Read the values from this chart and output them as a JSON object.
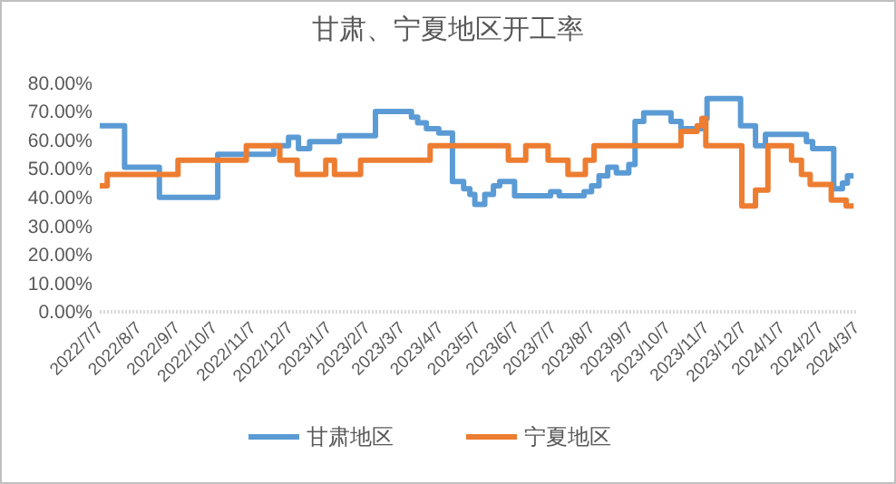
{
  "chart_data": {
    "type": "step",
    "title": "甘肃、宁夏地区开工率",
    "xlim": [
      "2022-07-07",
      "2024-03-07"
    ],
    "xticks": [
      {
        "value": "2022-07-07",
        "label": "2022/7/7"
      },
      {
        "value": "2022-08-07",
        "label": "2022/8/7"
      },
      {
        "value": "2022-09-07",
        "label": "2022/9/7"
      },
      {
        "value": "2022-10-07",
        "label": "2022/10/7"
      },
      {
        "value": "2022-11-07",
        "label": "2022/11/7"
      },
      {
        "value": "2022-12-07",
        "label": "2022/12/7"
      },
      {
        "value": "2023-01-07",
        "label": "2023/1/7"
      },
      {
        "value": "2023-02-07",
        "label": "2023/2/7"
      },
      {
        "value": "2023-03-07",
        "label": "2023/3/7"
      },
      {
        "value": "2023-04-07",
        "label": "2023/4/7"
      },
      {
        "value": "2023-05-07",
        "label": "2023/5/7"
      },
      {
        "value": "2023-06-07",
        "label": "2023/6/7"
      },
      {
        "value": "2023-07-07",
        "label": "2023/7/7"
      },
      {
        "value": "2023-08-07",
        "label": "2023/8/7"
      },
      {
        "value": "2023-09-07",
        "label": "2023/9/7"
      },
      {
        "value": "2023-10-07",
        "label": "2023/10/7"
      },
      {
        "value": "2023-11-07",
        "label": "2023/11/7"
      },
      {
        "value": "2023-12-07",
        "label": "2023/12/7"
      },
      {
        "value": "2024-01-07",
        "label": "2024/1/7"
      },
      {
        "value": "2024-02-07",
        "label": "2024/2/7"
      },
      {
        "value": "2024-03-07",
        "label": "2024/3/7"
      }
    ],
    "ylim": [
      0,
      80
    ],
    "yticks": [
      {
        "value": 0,
        "label": "0.00%"
      },
      {
        "value": 10,
        "label": "10.00%"
      },
      {
        "value": 20,
        "label": "20.00%"
      },
      {
        "value": 30,
        "label": "30.00%"
      },
      {
        "value": 40,
        "label": "40.00%"
      },
      {
        "value": 50,
        "label": "50.00%"
      },
      {
        "value": 60,
        "label": "60.00%"
      },
      {
        "value": 70,
        "label": "70.00%"
      },
      {
        "value": 80,
        "label": "80.00%"
      }
    ],
    "grid": false,
    "legend": "bottom",
    "line_style": "solid",
    "marker": "none",
    "series": [
      {
        "name": "甘肃地区",
        "color": "#5b9bd5",
        "x": [
          "2022-07-07",
          "2022-07-27",
          "2022-08-24",
          "2022-10-10",
          "2022-11-24",
          "2022-12-06",
          "2022-12-14",
          "2022-12-23",
          "2023-01-16",
          "2023-02-14",
          "2023-03-15",
          "2023-03-20",
          "2023-03-27",
          "2023-04-06",
          "2023-04-17",
          "2023-04-26",
          "2023-05-01",
          "2023-05-05",
          "2023-05-13",
          "2023-05-20",
          "2023-05-25",
          "2023-06-06",
          "2023-07-05",
          "2023-07-12",
          "2023-08-01",
          "2023-08-07",
          "2023-08-13",
          "2023-08-20",
          "2023-08-27",
          "2023-09-06",
          "2023-09-11",
          "2023-09-18",
          "2023-10-10",
          "2023-10-18",
          "2023-11-04",
          "2023-11-08",
          "2023-12-05",
          "2023-12-17",
          "2023-12-25",
          "2024-01-27",
          "2024-02-01",
          "2024-02-18",
          "2024-02-25",
          "2024-02-29",
          "2024-03-05"
        ],
        "values": [
          65,
          50.5,
          40,
          55,
          58,
          61,
          57,
          59.5,
          61.5,
          70,
          68,
          66,
          64,
          62.5,
          45.5,
          43,
          41,
          37.5,
          41,
          44,
          45.5,
          40.5,
          42,
          40.5,
          42,
          44,
          47.5,
          50.5,
          48.5,
          51.5,
          66.5,
          69.5,
          66.5,
          64,
          67.5,
          74.5,
          65,
          58,
          62,
          59.5,
          57,
          43,
          45,
          47.5,
          47.5
        ]
      },
      {
        "name": "宁夏地区",
        "color": "#ed7d31",
        "x": [
          "2022-07-07",
          "2022-07-13",
          "2022-09-08",
          "2022-11-02",
          "2022-11-29",
          "2022-12-13",
          "2023-01-05",
          "2023-01-12",
          "2023-02-02",
          "2023-03-30",
          "2023-06-01",
          "2023-06-15",
          "2023-07-03",
          "2023-07-19",
          "2023-08-02",
          "2023-08-09",
          "2023-10-18",
          "2023-10-31",
          "2023-11-04",
          "2023-11-07",
          "2023-12-06",
          "2023-12-17",
          "2023-12-27",
          "2024-01-15",
          "2024-01-23",
          "2024-01-30",
          "2024-02-16",
          "2024-02-28",
          "2024-03-05"
        ],
        "values": [
          44,
          48,
          53,
          58,
          53,
          48,
          53,
          48,
          53,
          58,
          53,
          58,
          53,
          48,
          53,
          58,
          63,
          65,
          67.5,
          58,
          37,
          42.5,
          58,
          53,
          48,
          44.5,
          39,
          37,
          37
        ]
      }
    ]
  }
}
